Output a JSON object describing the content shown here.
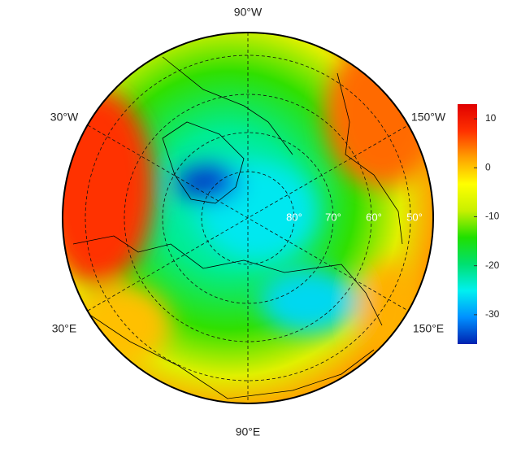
{
  "map": {
    "lon_labels": [
      "90°W",
      "30°W",
      "150°W",
      "30°E",
      "150°E",
      "90°E"
    ],
    "lat_labels": [
      "80°",
      "70°",
      "60°",
      "50°"
    ]
  },
  "colorbar": {
    "ylim": [
      -36,
      13
    ],
    "yticks": [
      10,
      0,
      -10,
      -20,
      -30
    ],
    "colors": [
      "#0022b0",
      "#0090ff",
      "#00f0f0",
      "#00e070",
      "#20e000",
      "#c8f000",
      "#ffff00",
      "#ffa000",
      "#ff3000",
      "#e00000"
    ]
  }
}
